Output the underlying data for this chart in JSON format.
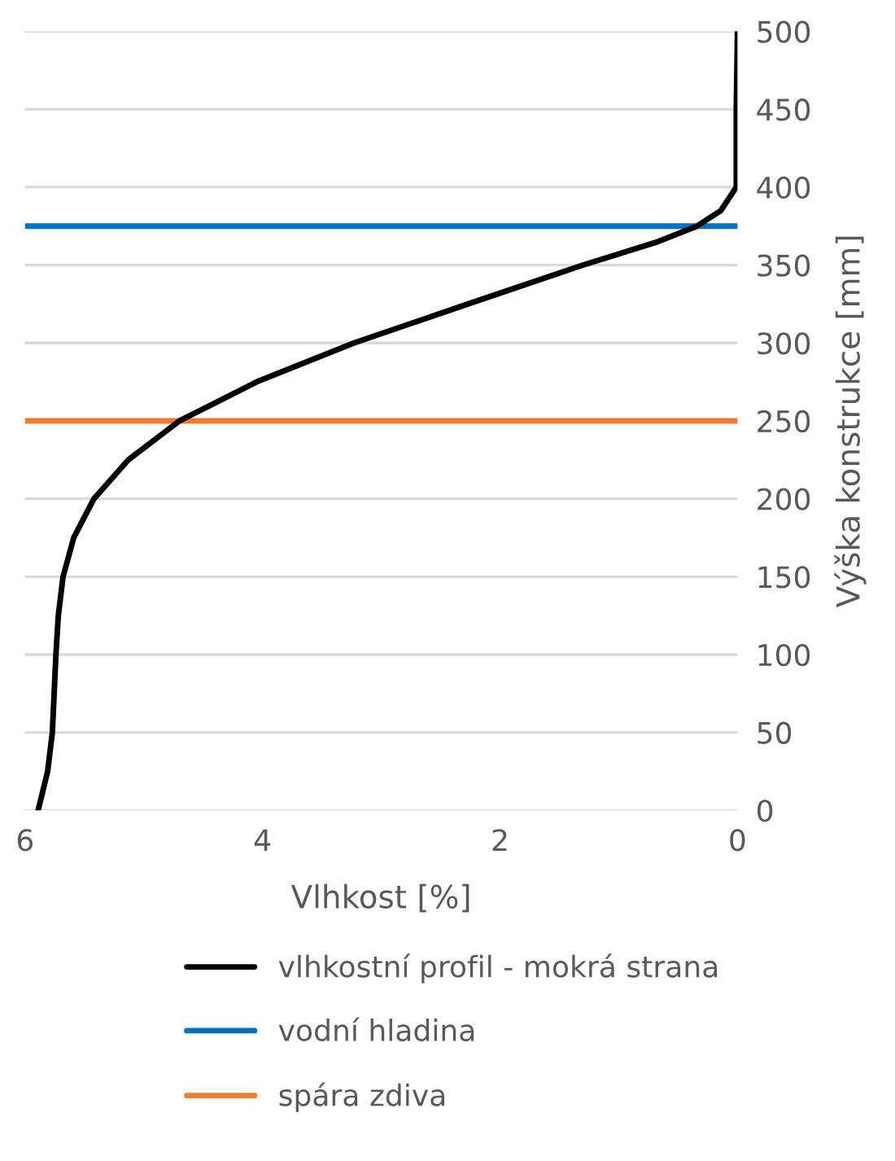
{
  "chart_data": {
    "type": "line",
    "xlabel": "Vlhkost [%]",
    "ylabel": "Výška konstrukce [mm]",
    "xlim": [
      6,
      0
    ],
    "xticks": [
      6,
      4,
      2,
      0
    ],
    "ylim": [
      0,
      500
    ],
    "yticks": [
      0,
      50,
      100,
      150,
      200,
      250,
      300,
      350,
      400,
      450,
      500
    ],
    "grid": "y",
    "legend": "bottom",
    "line_style": "solid",
    "marker": "none",
    "series": [
      {
        "name": "vlhkostní profil - mokrá strana",
        "color": "#000000",
        "x": [
          5.89,
          5.81,
          5.77,
          5.74,
          5.72,
          5.68,
          5.59,
          5.42,
          5.13,
          4.7,
          4.05,
          3.23,
          2.27,
          1.3,
          0.67,
          0.34,
          0.14,
          0.01,
          0.01,
          0.0
        ],
        "values": [
          0,
          25,
          50,
          100,
          125,
          150,
          175,
          200,
          225,
          250,
          275,
          300,
          325,
          350,
          365,
          375,
          385,
          400,
          450,
          500
        ]
      },
      {
        "name": "vodní hladina",
        "color": "#0070c0",
        "x": [
          6,
          0
        ],
        "values": [
          375,
          375
        ]
      },
      {
        "name": "spára zdiva",
        "color": "#ed7d31",
        "x": [
          6,
          0
        ],
        "values": [
          250,
          250
        ]
      }
    ]
  }
}
